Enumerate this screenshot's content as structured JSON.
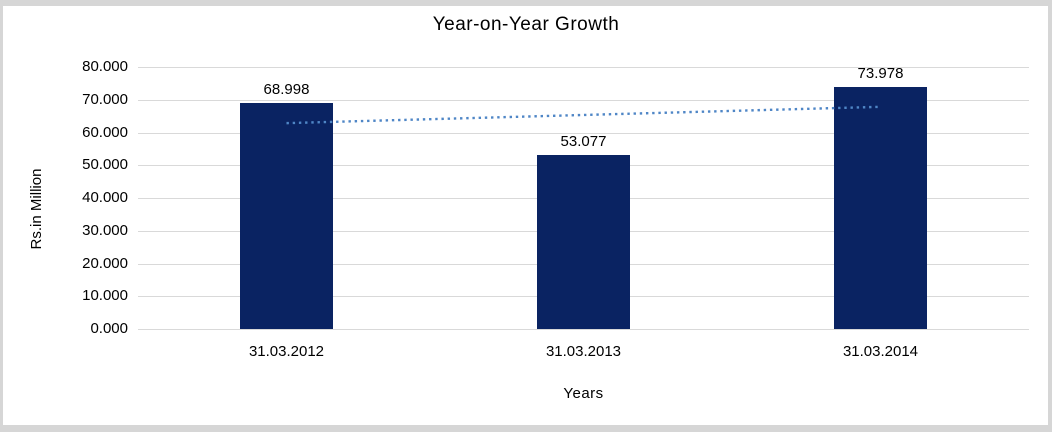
{
  "chart_data": {
    "type": "bar",
    "title": "Year-on-Year Growth",
    "xlabel": "Years",
    "ylabel": "Rs.in Million",
    "categories": [
      "31.03.2012",
      "31.03.2013",
      "31.03.2014"
    ],
    "values": [
      68.998,
      53.077,
      73.978
    ],
    "data_labels": [
      "68.998",
      "53.077",
      "73.978"
    ],
    "y_ticks": [
      "80.000",
      "70.000",
      "60.000",
      "50.000",
      "40.000",
      "30.000",
      "20.000",
      "10.000",
      "0.000"
    ],
    "ylim": [
      0,
      80
    ],
    "grid": true,
    "legend": false,
    "bar_color": "#0a2362",
    "gridline_color": "#d9d9d9",
    "trendline": {
      "type": "linear",
      "style": "dotted",
      "color": "#4f86c6"
    }
  }
}
